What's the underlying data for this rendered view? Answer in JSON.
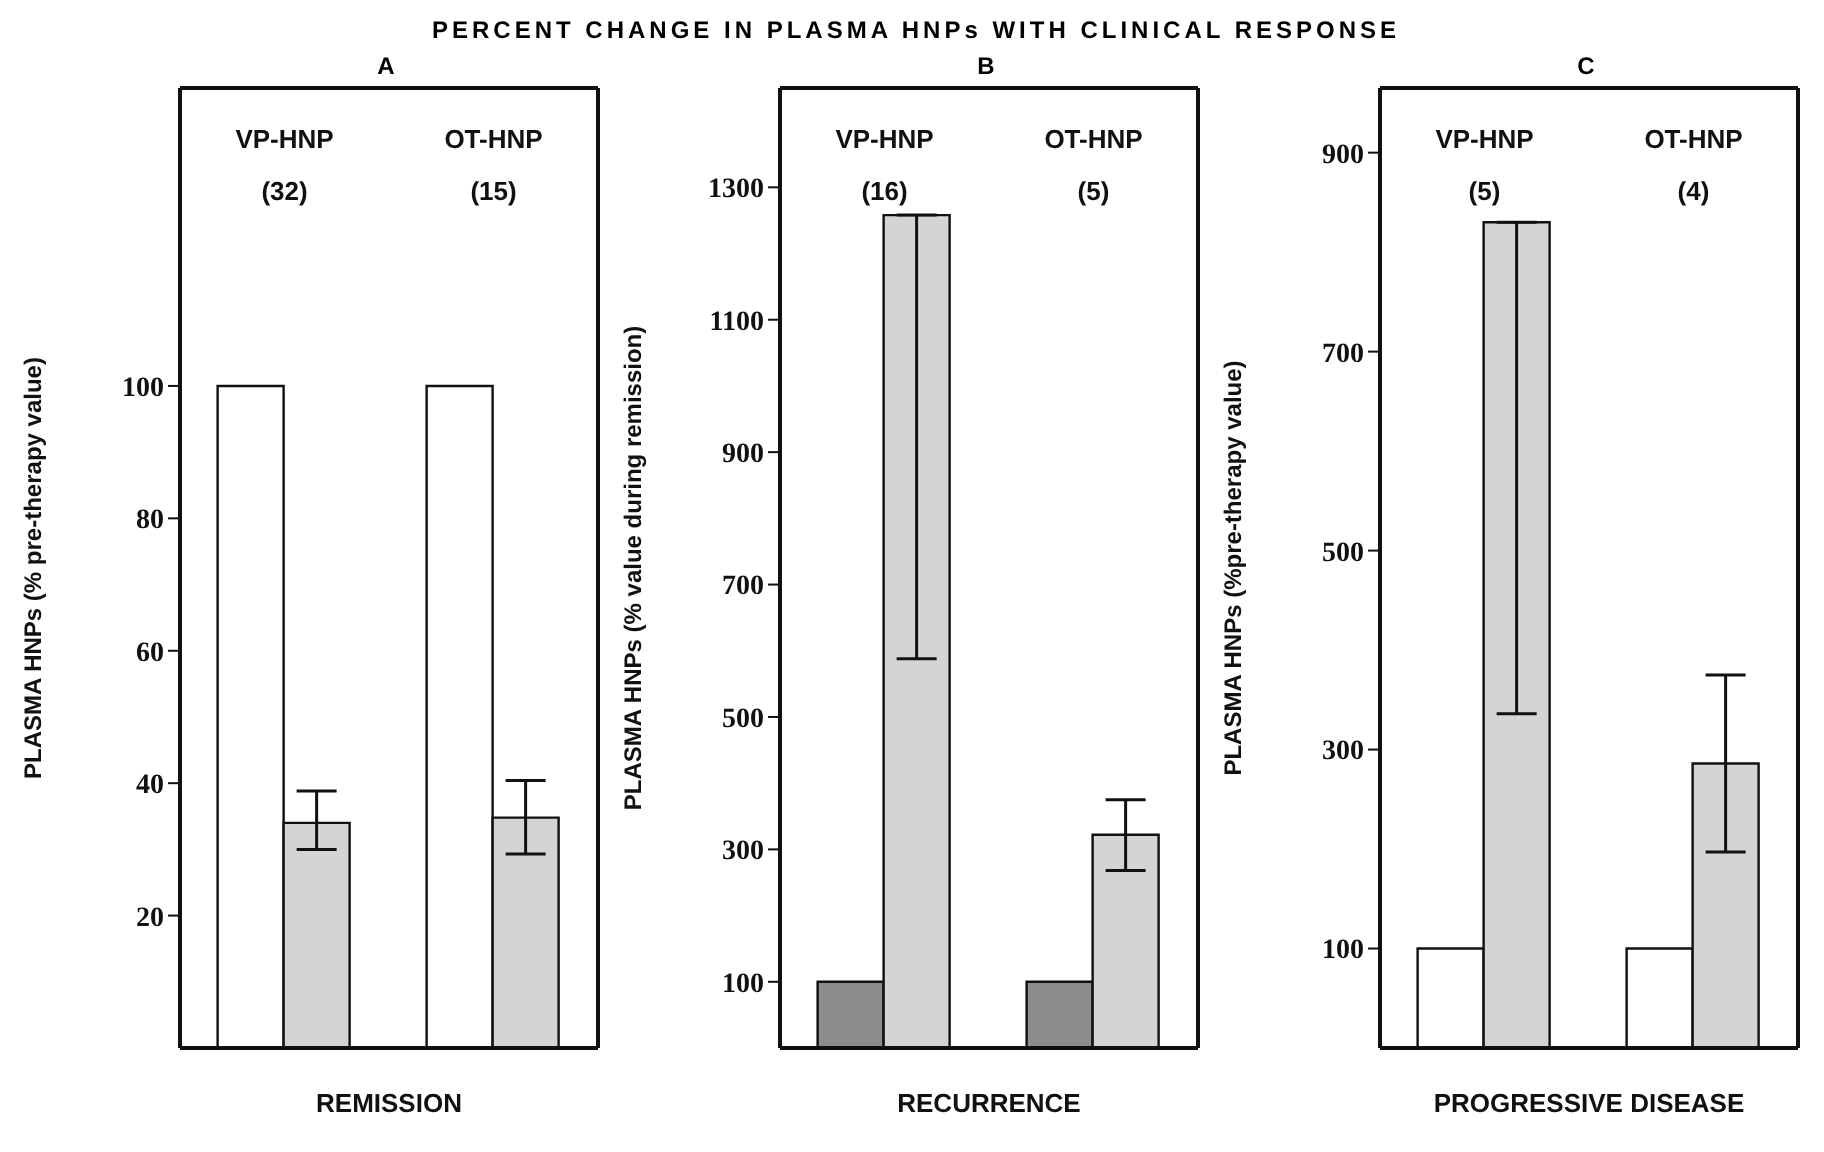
{
  "chart_data": [
    {
      "type": "bar",
      "title": "PERCENT CHANGE IN PLASMA HNPs WITH CLINICAL RESPONSE",
      "subtitle": "A",
      "xlabel": "REMISSION",
      "ylabel": "PLASMA HNPs (% pre-therapy value)",
      "categories": [
        "VP-HNP (32)",
        "OT-HNP (15)"
      ],
      "ylim": [
        0,
        145
      ],
      "yticks": [
        20,
        40,
        60,
        80,
        100
      ],
      "legend": false,
      "grid": false,
      "series": [
        {
          "color": "#ffffff",
          "values": [
            100,
            100
          ]
        },
        {
          "color": "#d4d4d4",
          "values": [
            34,
            34.8
          ],
          "errors": [
            [
              30,
              38.8
            ],
            [
              29.3,
              40.4
            ]
          ]
        }
      ]
    },
    {
      "type": "bar",
      "subtitle": "B",
      "xlabel": "RECURRENCE",
      "ylabel": "PLASMA HNPs (% value during remission)",
      "categories": [
        "VP-HNP (16)",
        "OT-HNP (5)"
      ],
      "ylim": [
        0,
        1450
      ],
      "yticks": [
        100,
        300,
        500,
        700,
        900,
        1100,
        1300
      ],
      "legend": false,
      "grid": false,
      "series": [
        {
          "color": "#8c8c8c",
          "values": [
            100,
            100
          ]
        },
        {
          "color": "#d4d4d4",
          "values": [
            1258,
            322
          ],
          "errors": [
            [
              588,
              1258
            ],
            [
              268,
              375
            ]
          ]
        }
      ]
    },
    {
      "type": "bar",
      "subtitle": "C",
      "xlabel": "PROGRESSIVE DISEASE",
      "ylabel": "PLASMA HNPs (%pre-therapy value)",
      "categories": [
        "VP-HNP (5)",
        "OT-HNP (4)"
      ],
      "ylim": [
        0,
        965
      ],
      "yticks": [
        100,
        300,
        500,
        700,
        900
      ],
      "legend": false,
      "grid": false,
      "series": [
        {
          "color": "#ffffff",
          "values": [
            100,
            100
          ]
        },
        {
          "color": "#d4d4d4",
          "values": [
            830,
            286
          ],
          "errors": [
            [
              336,
              830
            ],
            [
              197,
              375
            ]
          ]
        }
      ]
    }
  ]
}
